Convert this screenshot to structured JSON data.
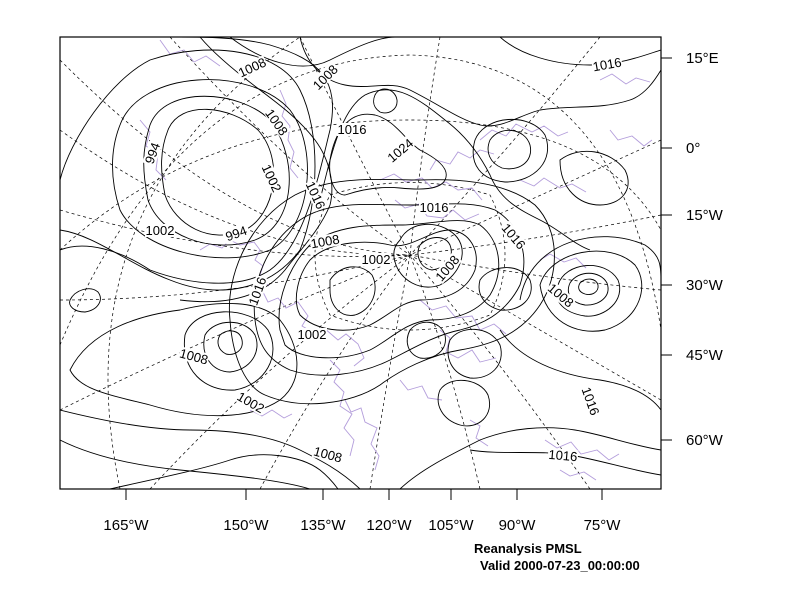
{
  "title": "Reanalysis PMSL",
  "valid_line": "Valid 2000-07-23_00:00:00",
  "longitude_labels": [
    "165°W",
    "150°W",
    "135°W",
    "120°W",
    "105°W",
    "90°W",
    "75°W"
  ],
  "latitude_labels": [
    "15°E",
    "0°",
    "15°W",
    "30°W",
    "45°W",
    "60°W"
  ],
  "contour_labels": [
    "1008",
    "1008",
    "1016",
    "1008",
    "994",
    "1002",
    "1024",
    "1016",
    "1016",
    "1002",
    "994",
    "1002",
    "1016",
    "1008",
    "1002",
    "1008",
    "1016",
    "1008",
    "1008",
    "1002",
    "1008",
    "1016",
    "1016",
    "1016",
    "1016"
  ],
  "colors": {
    "contour": "#000000",
    "coastline": "#b39ddb",
    "grid": "#000000",
    "frame": "#000000"
  }
}
